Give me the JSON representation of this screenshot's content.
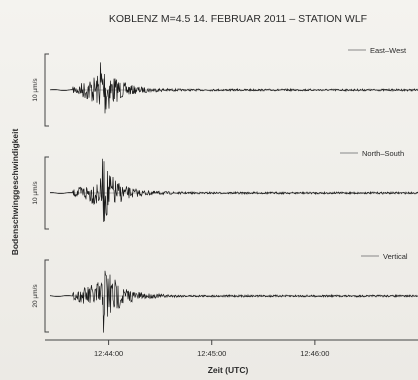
{
  "chart_data": {
    "type": "line",
    "title": "KOBLENZ M=4.5 14. FEBRUAR 2011 – STATION WLF",
    "xlabel": "Zeit (UTC)",
    "ylabel": "Bodenschwinggeschwindigkeit",
    "x_ticks": [
      "12:44:00",
      "12:45:00",
      "12:46:00"
    ],
    "x_range": [
      "12:43:23",
      "12:47:00"
    ],
    "grid": false,
    "series": [
      {
        "name": "East–West",
        "scale_label": "10 µm/s",
        "onset": "12:43:39",
        "peak_time": "12:43:55",
        "peak_amplitude_rel": 0.95
      },
      {
        "name": "North–South",
        "scale_label": "10 µm/s",
        "onset": "12:43:39",
        "peak_time": "12:43:56",
        "peak_amplitude_rel": 0.85
      },
      {
        "name": "Vertical",
        "scale_label": "20 µm/s",
        "onset": "12:43:39",
        "peak_time": "12:43:57",
        "peak_amplitude_rel": 0.95
      }
    ]
  },
  "colors": {
    "trace": "#1a1a1a",
    "axis": "#444444",
    "background": "#efeeea"
  }
}
